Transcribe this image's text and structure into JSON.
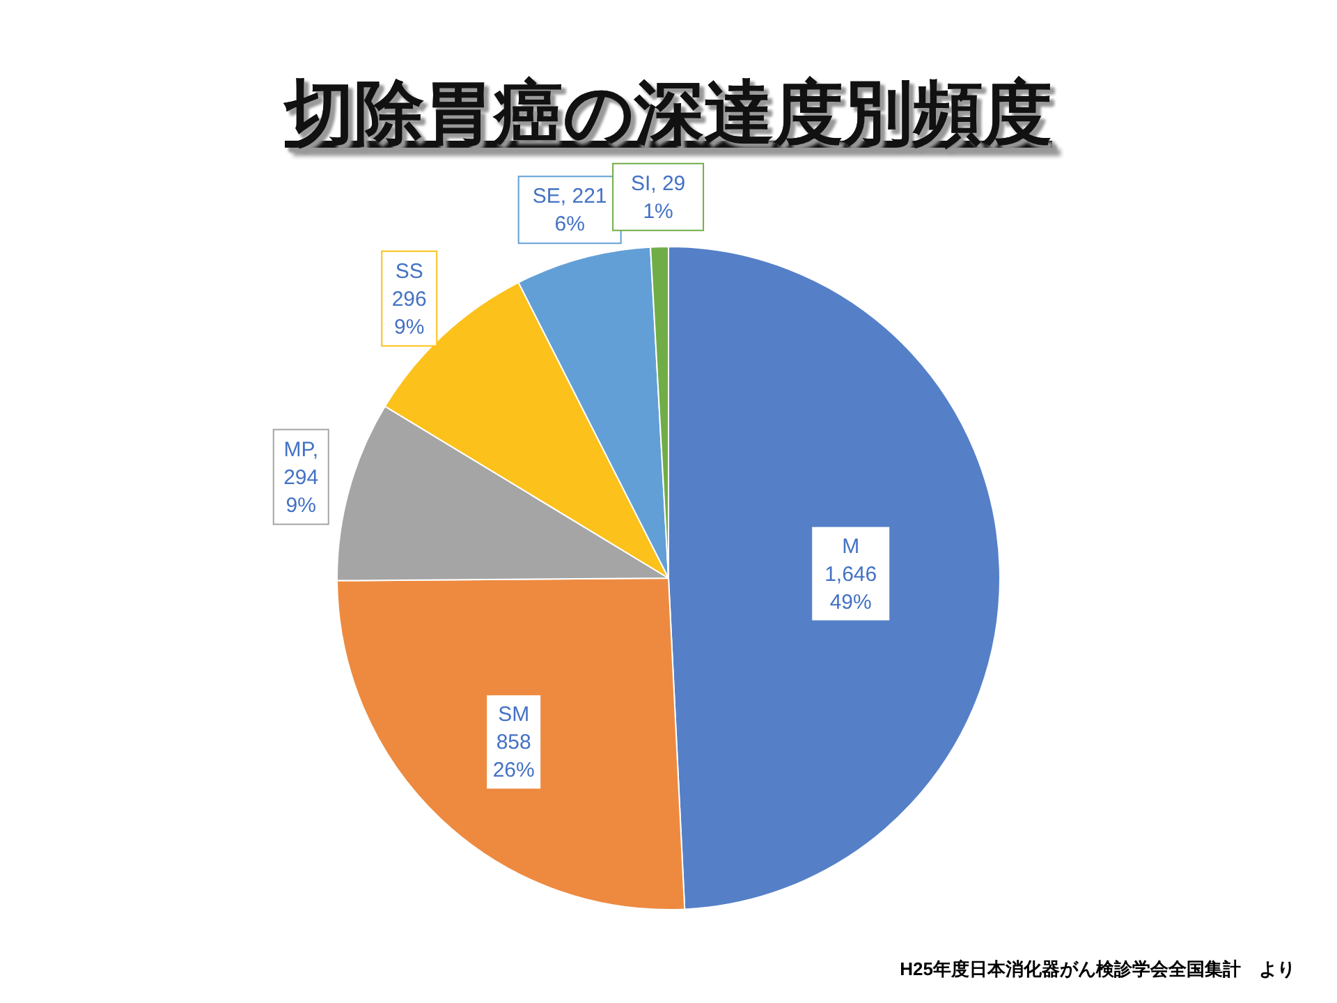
{
  "chart_data": {
    "type": "pie",
    "title": "切除胃癌の深達度別頻度",
    "categories": [
      "M",
      "SM",
      "MP",
      "SS",
      "SE",
      "SI"
    ],
    "values": [
      1646,
      858,
      294,
      296,
      221,
      29
    ],
    "colors": [
      "#5580c8",
      "#ed8a40",
      "#a5a5a5",
      "#fcc11a",
      "#629fd6",
      "#70ad47"
    ],
    "value_labels": [
      "1,646\n49%",
      "858\n26%",
      ",\n294\n9%",
      "296\n9%",
      ", 221\n6%",
      ", 29\n1%"
    ],
    "annotations": [
      "H25年度日本消化器がん検診学会全国集計　より"
    ]
  }
}
